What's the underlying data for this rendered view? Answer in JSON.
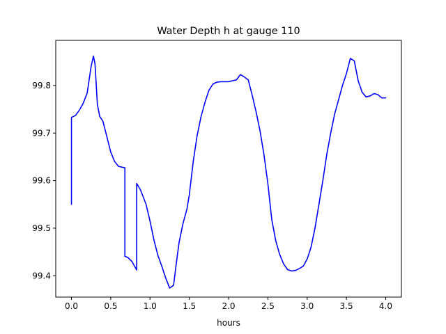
{
  "chart_data": {
    "type": "line",
    "title": "Water Depth h at gauge 110",
    "xlabel": "hours",
    "ylabel": "",
    "xlim": [
      -0.2,
      4.2
    ],
    "ylim": [
      99.355,
      99.895
    ],
    "xticks": [
      0.0,
      0.5,
      1.0,
      1.5,
      2.0,
      2.5,
      3.0,
      3.5,
      4.0
    ],
    "xtick_labels": [
      "0.0",
      "0.5",
      "1.0",
      "1.5",
      "2.0",
      "2.5",
      "3.0",
      "3.5",
      "4.0"
    ],
    "yticks": [
      99.4,
      99.5,
      99.6,
      99.7,
      99.8
    ],
    "ytick_labels": [
      "99.4",
      "99.5",
      "99.6",
      "99.7",
      "99.8"
    ],
    "grid": false,
    "line_color": "#0000ff",
    "series": [
      {
        "x": [
          0.0,
          0.0,
          0.05,
          0.1,
          0.15,
          0.2,
          0.25,
          0.28,
          0.3,
          0.33,
          0.36,
          0.4,
          0.45,
          0.5,
          0.55,
          0.6,
          0.65,
          0.68,
          0.68,
          0.72,
          0.77,
          0.83,
          0.83,
          0.88,
          0.95,
          1.0,
          1.05,
          1.1,
          1.15,
          1.2,
          1.25,
          1.3,
          1.33,
          1.37,
          1.42,
          1.47,
          1.5,
          1.55,
          1.6,
          1.65,
          1.7,
          1.75,
          1.8,
          1.85,
          1.9,
          1.95,
          2.0,
          2.1,
          2.15,
          2.2,
          2.25,
          2.3,
          2.35,
          2.4,
          2.45,
          2.5,
          2.55,
          2.6,
          2.65,
          2.7,
          2.75,
          2.8,
          2.85,
          2.9,
          2.95,
          3.0,
          3.05,
          3.1,
          3.15,
          3.2,
          3.25,
          3.3,
          3.35,
          3.4,
          3.45,
          3.5,
          3.55,
          3.6,
          3.65,
          3.7,
          3.75,
          3.8,
          3.85,
          3.9,
          3.95,
          4.0
        ],
        "y": [
          99.55,
          99.733,
          99.737,
          99.748,
          99.763,
          99.784,
          99.84,
          99.862,
          99.845,
          99.76,
          99.735,
          99.725,
          99.693,
          99.66,
          99.64,
          99.63,
          99.628,
          99.627,
          99.441,
          99.438,
          99.43,
          99.412,
          99.594,
          99.58,
          99.55,
          99.515,
          99.475,
          99.443,
          99.42,
          99.395,
          99.374,
          99.38,
          99.42,
          99.47,
          99.51,
          99.54,
          99.57,
          99.64,
          99.695,
          99.735,
          99.765,
          99.79,
          99.803,
          99.807,
          99.808,
          99.808,
          99.808,
          99.812,
          99.823,
          99.818,
          99.812,
          99.78,
          99.745,
          99.705,
          99.655,
          99.594,
          99.518,
          99.474,
          99.445,
          99.425,
          99.413,
          99.41,
          99.411,
          99.415,
          99.42,
          99.435,
          99.46,
          99.5,
          99.55,
          99.6,
          99.655,
          99.7,
          99.74,
          99.77,
          99.8,
          99.825,
          99.857,
          99.852,
          99.81,
          99.786,
          99.776,
          99.778,
          99.783,
          99.781,
          99.774,
          99.774
        ]
      }
    ]
  }
}
